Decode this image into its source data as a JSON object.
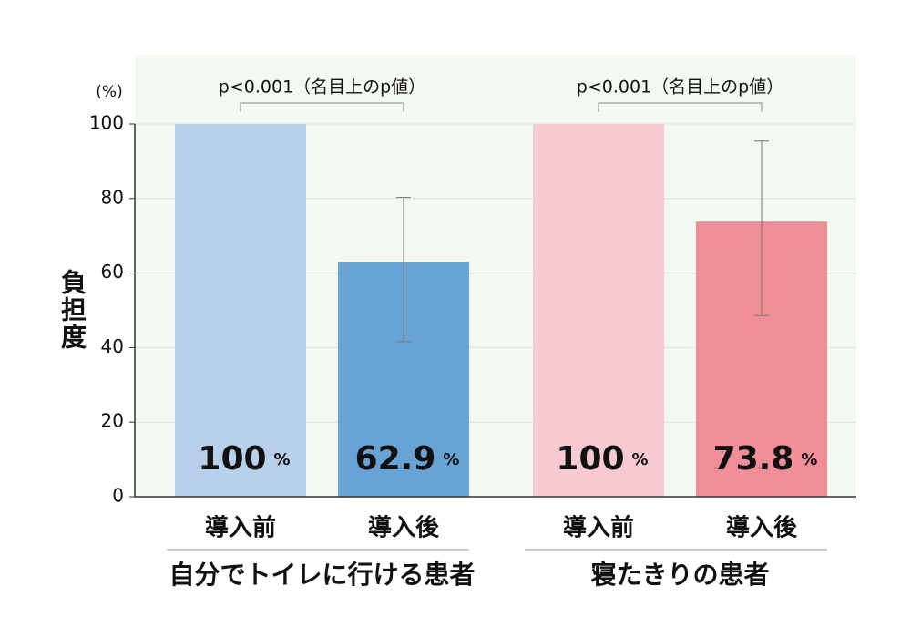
{
  "chart_data": {
    "type": "bar",
    "y_unit_label": "(%)",
    "y_label": "負担度",
    "categories": [
      "導入前",
      "導入後",
      "導入前",
      "導入後"
    ],
    "values": [
      100,
      62.9,
      100,
      73.8
    ],
    "value_labels": [
      "100",
      "62.9",
      "100",
      "73.8"
    ],
    "value_unit": "%",
    "colors": [
      "#b9d0ec",
      "#68a3d6",
      "#f7c9d1",
      "#ef8e97"
    ],
    "error_low": [
      null,
      41.6,
      null,
      48.6
    ],
    "error_high": [
      null,
      80.3,
      null,
      95.4
    ],
    "groups": [
      {
        "label": "自分でトイレに行ける患者",
        "annotation": "p<0.001（名目上のp値）"
      },
      {
        "label": "寝たきりの患者",
        "annotation": "p<0.001（名目上のp値）"
      }
    ],
    "ylim": [
      0,
      100
    ],
    "yticks": [
      0,
      20,
      40,
      60,
      80,
      100
    ],
    "grid": true
  }
}
